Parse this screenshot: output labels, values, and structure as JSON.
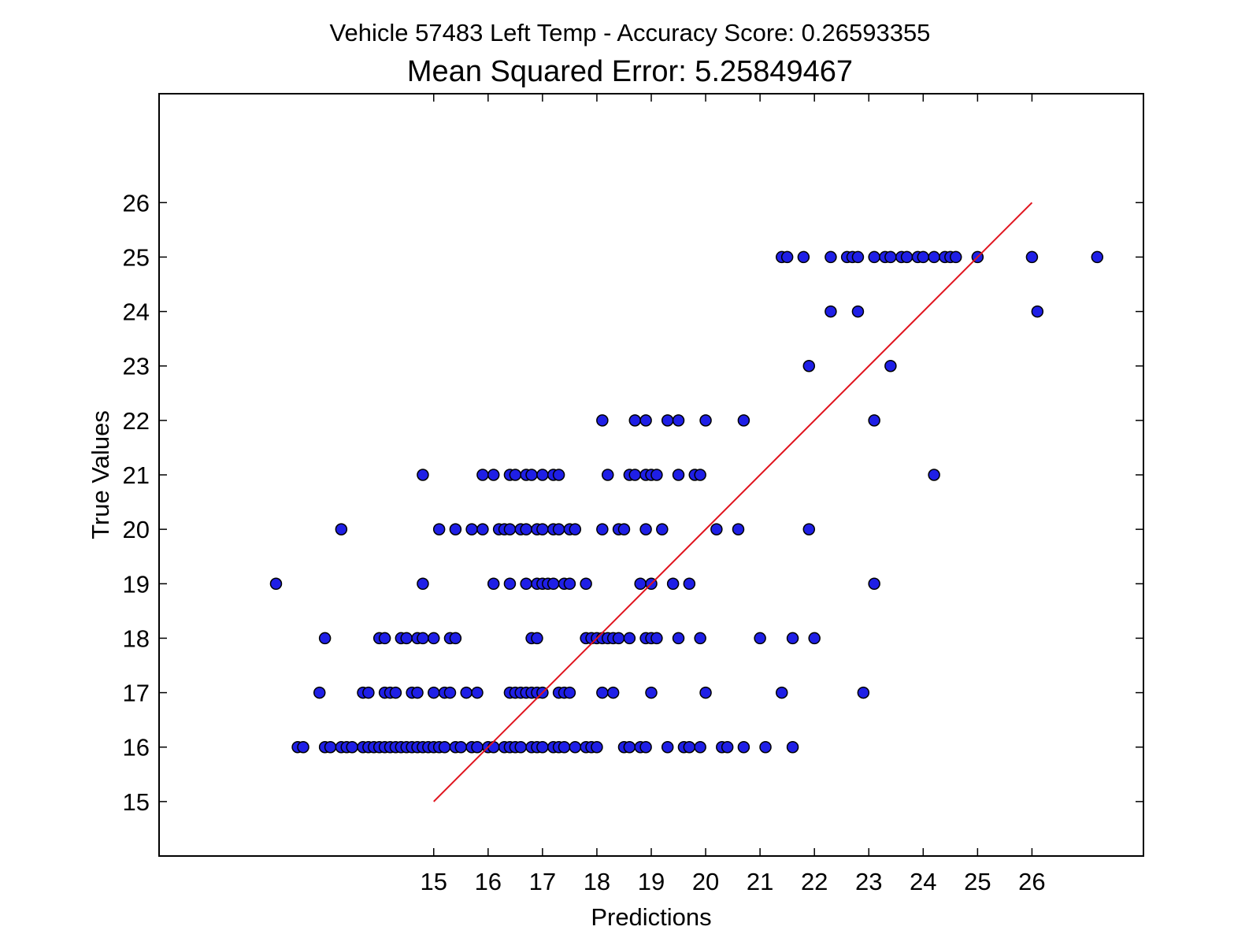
{
  "chart_data": {
    "type": "scatter",
    "title": "Vehicle 57483 Left Temp - Accuracy Score: 0.26593355",
    "subtitle": "Mean Squared Error: 5.25849467",
    "xlabel": "Predictions",
    "ylabel": "True Values",
    "xlim": [
      9.95,
      28.05
    ],
    "ylim": [
      14,
      28
    ],
    "xticks": [
      15,
      16,
      17,
      18,
      19,
      20,
      21,
      22,
      23,
      24,
      25,
      26
    ],
    "yticks": [
      15,
      16,
      17,
      18,
      19,
      20,
      21,
      22,
      23,
      24,
      25,
      26
    ],
    "grid": false,
    "colors": {
      "marker_fill": "#1f1fe6",
      "marker_edge": "#000000",
      "line": "#e0141e"
    },
    "reference_line": {
      "x": [
        15,
        26
      ],
      "y": [
        15,
        26
      ]
    },
    "points": [
      [
        12.1,
        19
      ],
      [
        12.9,
        17
      ],
      [
        12.5,
        16
      ],
      [
        12.6,
        16
      ],
      [
        13.0,
        16
      ],
      [
        13.1,
        16
      ],
      [
        13.3,
        16
      ],
      [
        13.4,
        16
      ],
      [
        13.5,
        16
      ],
      [
        13.7,
        16
      ],
      [
        13.8,
        16
      ],
      [
        13.9,
        16
      ],
      [
        14.0,
        16
      ],
      [
        14.1,
        16
      ],
      [
        14.2,
        16
      ],
      [
        14.3,
        16
      ],
      [
        14.4,
        16
      ],
      [
        14.5,
        16
      ],
      [
        14.6,
        16
      ],
      [
        14.7,
        16
      ],
      [
        14.8,
        16
      ],
      [
        14.9,
        16
      ],
      [
        15.0,
        16
      ],
      [
        15.1,
        16
      ],
      [
        15.2,
        16
      ],
      [
        15.4,
        16
      ],
      [
        15.5,
        16
      ],
      [
        15.7,
        16
      ],
      [
        15.8,
        16
      ],
      [
        16.0,
        16
      ],
      [
        16.1,
        16
      ],
      [
        16.3,
        16
      ],
      [
        16.4,
        16
      ],
      [
        16.5,
        16
      ],
      [
        16.6,
        16
      ],
      [
        16.8,
        16
      ],
      [
        16.9,
        16
      ],
      [
        17.0,
        16
      ],
      [
        17.2,
        16
      ],
      [
        17.3,
        16
      ],
      [
        17.4,
        16
      ],
      [
        17.6,
        16
      ],
      [
        17.8,
        16
      ],
      [
        17.9,
        16
      ],
      [
        18.0,
        16
      ],
      [
        18.5,
        16
      ],
      [
        18.6,
        16
      ],
      [
        18.8,
        16
      ],
      [
        18.9,
        16
      ],
      [
        19.3,
        16
      ],
      [
        19.6,
        16
      ],
      [
        19.7,
        16
      ],
      [
        19.9,
        16
      ],
      [
        20.3,
        16
      ],
      [
        20.4,
        16
      ],
      [
        20.7,
        16
      ],
      [
        21.1,
        16
      ],
      [
        21.6,
        16
      ],
      [
        13.7,
        17
      ],
      [
        13.8,
        17
      ],
      [
        14.1,
        17
      ],
      [
        14.2,
        17
      ],
      [
        14.3,
        17
      ],
      [
        14.6,
        17
      ],
      [
        14.7,
        17
      ],
      [
        15.0,
        17
      ],
      [
        15.2,
        17
      ],
      [
        15.3,
        17
      ],
      [
        15.6,
        17
      ],
      [
        15.8,
        17
      ],
      [
        16.4,
        17
      ],
      [
        16.5,
        17
      ],
      [
        16.6,
        17
      ],
      [
        16.7,
        17
      ],
      [
        16.8,
        17
      ],
      [
        16.9,
        17
      ],
      [
        17.0,
        17
      ],
      [
        17.3,
        17
      ],
      [
        17.4,
        17
      ],
      [
        17.5,
        17
      ],
      [
        18.1,
        17
      ],
      [
        18.3,
        17
      ],
      [
        19.0,
        17
      ],
      [
        20.0,
        17
      ],
      [
        21.4,
        17
      ],
      [
        22.9,
        17
      ],
      [
        13.0,
        18
      ],
      [
        14.0,
        18
      ],
      [
        14.1,
        18
      ],
      [
        14.4,
        18
      ],
      [
        14.5,
        18
      ],
      [
        14.7,
        18
      ],
      [
        14.8,
        18
      ],
      [
        15.0,
        18
      ],
      [
        15.3,
        18
      ],
      [
        15.4,
        18
      ],
      [
        16.8,
        18
      ],
      [
        16.9,
        18
      ],
      [
        17.8,
        18
      ],
      [
        17.9,
        18
      ],
      [
        18.0,
        18
      ],
      [
        18.1,
        18
      ],
      [
        18.2,
        18
      ],
      [
        18.3,
        18
      ],
      [
        18.4,
        18
      ],
      [
        18.6,
        18
      ],
      [
        18.9,
        18
      ],
      [
        19.0,
        18
      ],
      [
        19.1,
        18
      ],
      [
        19.5,
        18
      ],
      [
        19.9,
        18
      ],
      [
        21.0,
        18
      ],
      [
        21.6,
        18
      ],
      [
        22.0,
        18
      ],
      [
        14.8,
        19
      ],
      [
        16.1,
        19
      ],
      [
        16.4,
        19
      ],
      [
        16.7,
        19
      ],
      [
        16.9,
        19
      ],
      [
        17.0,
        19
      ],
      [
        17.1,
        19
      ],
      [
        17.2,
        19
      ],
      [
        17.4,
        19
      ],
      [
        17.5,
        19
      ],
      [
        17.8,
        19
      ],
      [
        18.8,
        19
      ],
      [
        19.0,
        19
      ],
      [
        19.4,
        19
      ],
      [
        19.7,
        19
      ],
      [
        23.1,
        19
      ],
      [
        13.3,
        20
      ],
      [
        15.1,
        20
      ],
      [
        15.4,
        20
      ],
      [
        15.7,
        20
      ],
      [
        15.9,
        20
      ],
      [
        16.2,
        20
      ],
      [
        16.3,
        20
      ],
      [
        16.4,
        20
      ],
      [
        16.6,
        20
      ],
      [
        16.7,
        20
      ],
      [
        16.9,
        20
      ],
      [
        17.0,
        20
      ],
      [
        17.2,
        20
      ],
      [
        17.3,
        20
      ],
      [
        17.5,
        20
      ],
      [
        17.6,
        20
      ],
      [
        18.1,
        20
      ],
      [
        18.4,
        20
      ],
      [
        18.5,
        20
      ],
      [
        18.9,
        20
      ],
      [
        19.2,
        20
      ],
      [
        20.2,
        20
      ],
      [
        20.6,
        20
      ],
      [
        21.9,
        20
      ],
      [
        14.8,
        21
      ],
      [
        15.9,
        21
      ],
      [
        16.1,
        21
      ],
      [
        16.4,
        21
      ],
      [
        16.5,
        21
      ],
      [
        16.7,
        21
      ],
      [
        16.8,
        21
      ],
      [
        17.0,
        21
      ],
      [
        17.2,
        21
      ],
      [
        17.3,
        21
      ],
      [
        18.2,
        21
      ],
      [
        18.6,
        21
      ],
      [
        18.7,
        21
      ],
      [
        18.9,
        21
      ],
      [
        19.0,
        21
      ],
      [
        19.1,
        21
      ],
      [
        19.5,
        21
      ],
      [
        19.8,
        21
      ],
      [
        19.9,
        21
      ],
      [
        24.2,
        21
      ],
      [
        18.1,
        22
      ],
      [
        18.7,
        22
      ],
      [
        18.9,
        22
      ],
      [
        19.3,
        22
      ],
      [
        19.5,
        22
      ],
      [
        20.0,
        22
      ],
      [
        20.7,
        22
      ],
      [
        23.1,
        22
      ],
      [
        21.9,
        23
      ],
      [
        23.4,
        23
      ],
      [
        22.3,
        24
      ],
      [
        22.8,
        24
      ],
      [
        26.1,
        24
      ],
      [
        21.4,
        25
      ],
      [
        21.5,
        25
      ],
      [
        21.8,
        25
      ],
      [
        22.3,
        25
      ],
      [
        22.6,
        25
      ],
      [
        22.7,
        25
      ],
      [
        22.8,
        25
      ],
      [
        23.1,
        25
      ],
      [
        23.3,
        25
      ],
      [
        23.4,
        25
      ],
      [
        23.6,
        25
      ],
      [
        23.7,
        25
      ],
      [
        23.9,
        25
      ],
      [
        24.0,
        25
      ],
      [
        24.2,
        25
      ],
      [
        24.4,
        25
      ],
      [
        24.5,
        25
      ],
      [
        24.6,
        25
      ],
      [
        25.0,
        25
      ],
      [
        26.0,
        25
      ],
      [
        27.2,
        25
      ]
    ]
  }
}
